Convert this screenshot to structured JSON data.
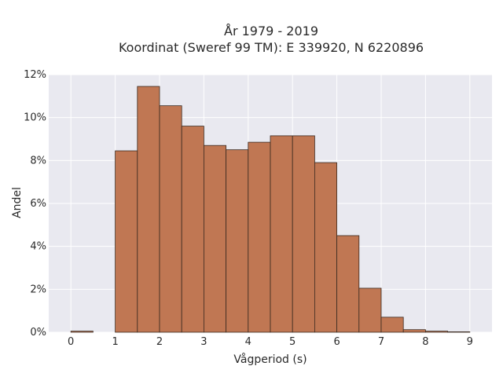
{
  "chart_data": {
    "type": "bar",
    "title_line1": "År 1979 - 2019",
    "title_line2": "Koordinat (Sweref 99 TM): E 339920, N 6220896",
    "xlabel": "Vågperiod (s)",
    "ylabel": "Andel",
    "xlim": [
      -0.5,
      9.5
    ],
    "ylim": [
      0,
      12
    ],
    "x_ticks": [
      0,
      1,
      2,
      3,
      4,
      5,
      6,
      7,
      8,
      9
    ],
    "y_ticks": [
      "0%",
      "2%",
      "4%",
      "6%",
      "8%",
      "10%",
      "12%"
    ],
    "bin_width": 0.5,
    "bins": [
      {
        "start": 0.0,
        "value": 0.05
      },
      {
        "start": 1.0,
        "value": 8.45
      },
      {
        "start": 1.5,
        "value": 11.45
      },
      {
        "start": 2.0,
        "value": 10.55
      },
      {
        "start": 2.5,
        "value": 9.6
      },
      {
        "start": 3.0,
        "value": 8.7
      },
      {
        "start": 3.5,
        "value": 8.5
      },
      {
        "start": 4.0,
        "value": 8.85
      },
      {
        "start": 4.5,
        "value": 9.15
      },
      {
        "start": 5.0,
        "value": 9.15
      },
      {
        "start": 5.5,
        "value": 7.9
      },
      {
        "start": 6.0,
        "value": 4.5
      },
      {
        "start": 6.5,
        "value": 2.05
      },
      {
        "start": 7.0,
        "value": 0.7
      },
      {
        "start": 7.5,
        "value": 0.12
      },
      {
        "start": 8.0,
        "value": 0.05
      },
      {
        "start": 8.5,
        "value": 0.02
      }
    ],
    "grid": true,
    "colors": {
      "plot_bg": "#e9e9f0",
      "grid": "#ffffff",
      "bar_fill": "#c07753",
      "bar_stroke": "#3a2a20"
    }
  }
}
